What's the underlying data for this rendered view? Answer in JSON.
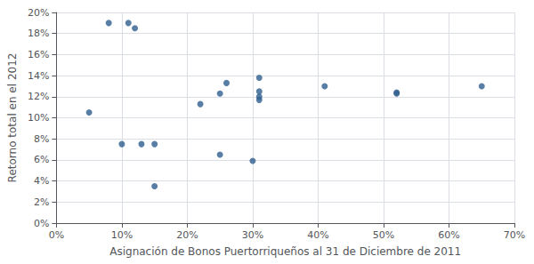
{
  "chart_data": {
    "type": "scatter",
    "x": [
      0.05,
      0.08,
      0.11,
      0.12,
      0.13,
      0.1,
      0.15,
      0.15,
      0.22,
      0.25,
      0.25,
      0.26,
      0.3,
      0.31,
      0.31,
      0.31,
      0.31,
      0.41,
      0.52,
      0.52,
      0.65
    ],
    "y": [
      0.105,
      0.19,
      0.19,
      0.185,
      0.075,
      0.075,
      0.075,
      0.035,
      0.113,
      0.065,
      0.123,
      0.133,
      0.059,
      0.12,
      0.125,
      0.138,
      0.117,
      0.13,
      0.123,
      0.124,
      0.13
    ],
    "color": "#2E5E8E",
    "xlabel": "Asignación de Bonos Puertorriqueños al 31 de Diciembre de 2011",
    "ylabel": "Retorno total en el 2012",
    "xlim": [
      0.0,
      0.7
    ],
    "ylim": [
      0.0,
      0.2
    ],
    "xticks": [
      {
        "value": 0.0,
        "label": "0%"
      },
      {
        "value": 0.1,
        "label": "10%"
      },
      {
        "value": 0.2,
        "label": "20%"
      },
      {
        "value": 0.3,
        "label": "30%"
      },
      {
        "value": 0.4,
        "label": "40%"
      },
      {
        "value": 0.5,
        "label": "50%"
      },
      {
        "value": 0.6,
        "label": "60%"
      },
      {
        "value": 0.7,
        "label": "70%"
      }
    ],
    "yticks": [
      {
        "value": 0.0,
        "label": "0%"
      },
      {
        "value": 0.02,
        "label": "2%"
      },
      {
        "value": 0.04,
        "label": "4%"
      },
      {
        "value": 0.06,
        "label": "6%"
      },
      {
        "value": 0.08,
        "label": "8%"
      },
      {
        "value": 0.1,
        "label": "10%"
      },
      {
        "value": 0.12,
        "label": "12%"
      },
      {
        "value": 0.14,
        "label": "14%"
      },
      {
        "value": 0.16,
        "label": "16%"
      },
      {
        "value": 0.18,
        "label": "18%"
      },
      {
        "value": 0.2,
        "label": "20%"
      }
    ],
    "grid": true
  }
}
